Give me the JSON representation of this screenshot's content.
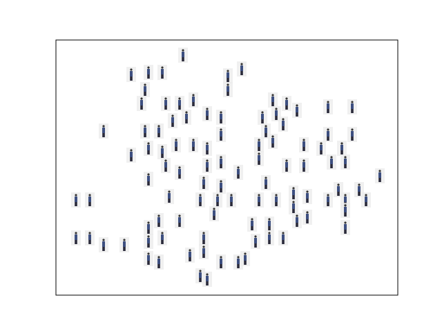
{
  "chart_data": {
    "type": "scatter",
    "color": "#3d4f80",
    "x": [
      184,
      109,
      134,
      154,
      249,
      269,
      129,
      249,
      124,
      159,
      179,
      199,
      314,
      334,
      349,
      394,
      429,
      219,
      239,
      299,
      319,
      169,
      189,
      69,
      129,
      149,
      239,
      329,
      304,
      394,
      429,
      109,
      134,
      154,
      174,
      199,
      219,
      294,
      314,
      359,
      384,
      414,
      159,
      179,
      219,
      239,
      264,
      294,
      334,
      359,
      399,
      419,
      469,
      134,
      214,
      239,
      304,
      344,
      364,
      409,
      439,
      29,
      49,
      164,
      209,
      234,
      254,
      294,
      319,
      344,
      394,
      419,
      449,
      229,
      179,
      149,
      134,
      284,
      309,
      349,
      364,
      419,
      29,
      49,
      69,
      99,
      134,
      154,
      214,
      289,
      309,
      329,
      194,
      214,
      239,
      264,
      134,
      149,
      209,
      219,
      274,
      419
    ],
    "y": [
      348,
      320,
      323,
      323,
      318,
      328,
      298,
      298,
      278,
      278,
      278,
      283,
      283,
      278,
      268,
      273,
      273,
      263,
      258,
      258,
      263,
      253,
      258,
      238,
      238,
      238,
      233,
      248,
      238,
      233,
      233,
      203,
      213,
      208,
      218,
      218,
      213,
      218,
      223,
      218,
      213,
      213,
      188,
      178,
      188,
      193,
      178,
      198,
      188,
      188,
      193,
      193,
      173,
      168,
      163,
      158,
      163,
      148,
      143,
      153,
      153,
      138,
      138,
      143,
      138,
      138,
      138,
      138,
      138,
      128,
      138,
      138,
      138,
      118,
      108,
      108,
      98,
      103,
      103,
      108,
      113,
      98,
      83,
      83,
      73,
      73,
      78,
      83,
      83,
      78,
      83,
      83,
      58,
      63,
      48,
      48,
      53,
      48,
      28,
      23,
      53,
      123
    ],
    "xlim": [
      0,
      495
    ],
    "ylim": [
      0,
      370
    ]
  }
}
